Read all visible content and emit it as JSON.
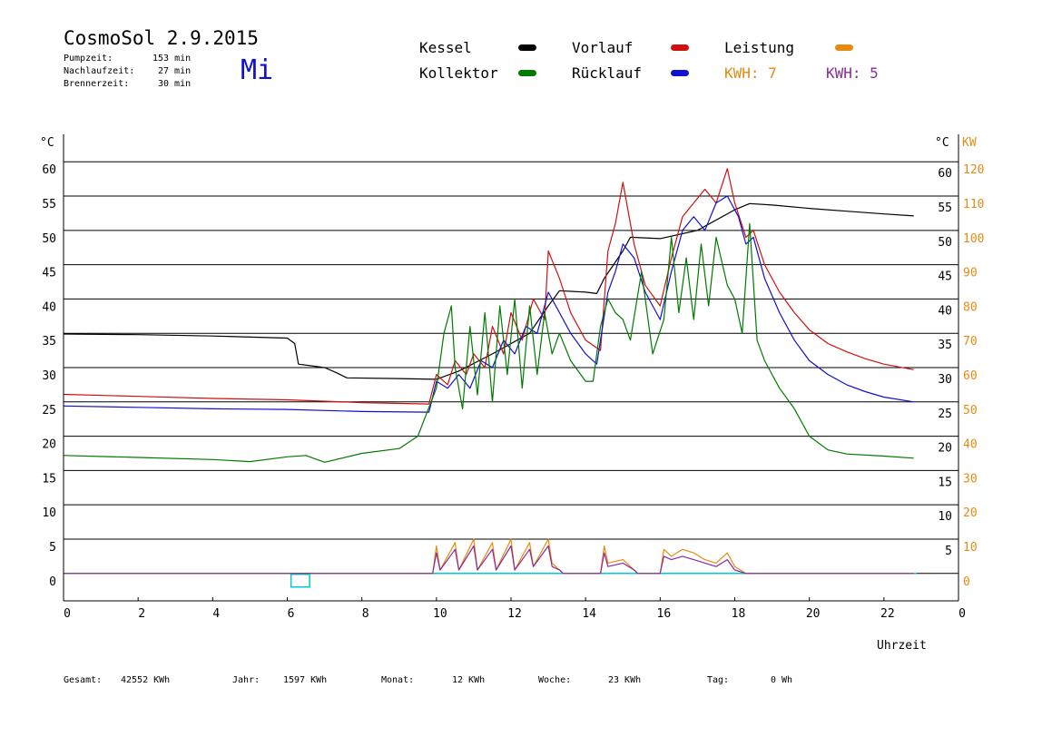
{
  "header": {
    "title": "CosmoSol 2.9.2015",
    "day": "Mi",
    "pump_label": "Pumpzeit:",
    "pump_value": "153 min",
    "nachlauf_label": "Nachlaufzeit:",
    "nachlauf_value": "27 min",
    "brenner_label": "Brennerzeit:",
    "brenner_value": "30 min"
  },
  "legend": {
    "kessel": "Kessel",
    "kollektor": "Kollektor",
    "vorlauf": "Vorlauf",
    "ruecklauf": "Rücklauf",
    "leistung": "Leistung",
    "kwh1": "KWH: 7",
    "kwh2": "KWH: 5"
  },
  "colors": {
    "kessel": "#000000",
    "kollektor": "#007a00",
    "vorlauf": "#d01010",
    "ruecklauf": "#1010d0",
    "leistung": "#e88a10",
    "kwh2": "#8a2a9a",
    "baseline": "#00c8d8"
  },
  "footer": {
    "gesamt_label": "Gesamt:",
    "gesamt_value": "42552 KWh",
    "jahr_label": "Jahr:",
    "jahr_value": "1597 KWh",
    "monat_label": "Monat:",
    "monat_value": "12 KWh",
    "woche_label": "Woche:",
    "woche_value": "23 KWh",
    "tag_label": "Tag:",
    "tag_value": "0 Wh"
  },
  "chart_data": {
    "type": "line",
    "xlabel": "Uhrzeit",
    "ylabel_left": "°C",
    "ylabel_right_temp": "°C",
    "ylabel_right_power": "KW",
    "xlim": [
      0,
      24
    ],
    "ylim": [
      -4,
      64
    ],
    "x_ticks": [
      "0",
      "2",
      "4",
      "6",
      "8",
      "10",
      "12",
      "14",
      "16",
      "18",
      "20",
      "22",
      "0"
    ],
    "y_ticks_left": [
      "0",
      "5",
      "10",
      "15",
      "20",
      "25",
      "30",
      "35",
      "40",
      "45",
      "50",
      "55",
      "60"
    ],
    "y_ticks_right_temp": [
      "5",
      "10",
      "15",
      "20",
      "25",
      "30",
      "35",
      "40",
      "45",
      "50",
      "55",
      "60"
    ],
    "y_ticks_right_power": [
      "0",
      "10",
      "20",
      "30",
      "40",
      "50",
      "60",
      "70",
      "80",
      "90",
      "100",
      "110",
      "120"
    ],
    "grid": true,
    "series": [
      {
        "name": "Kessel",
        "color": "#000000",
        "points": [
          [
            0,
            34.9
          ],
          [
            2,
            34.8
          ],
          [
            4,
            34.6
          ],
          [
            6,
            34.3
          ],
          [
            6.2,
            33.5
          ],
          [
            6.3,
            30.5
          ],
          [
            7,
            30.0
          ],
          [
            7.3,
            29.3
          ],
          [
            7.6,
            28.5
          ],
          [
            9,
            28.4
          ],
          [
            10,
            28.3
          ],
          [
            10.6,
            29.5
          ],
          [
            11.5,
            32
          ],
          [
            12.5,
            35
          ],
          [
            13,
            39
          ],
          [
            13.3,
            41.2
          ],
          [
            14,
            41.0
          ],
          [
            14.3,
            40.8
          ],
          [
            14.5,
            43
          ],
          [
            15,
            47
          ],
          [
            15.2,
            49
          ],
          [
            16,
            48.8
          ],
          [
            17,
            50
          ],
          [
            18,
            53
          ],
          [
            18.4,
            53.9
          ],
          [
            19,
            53.7
          ],
          [
            20,
            53.2
          ],
          [
            21,
            52.8
          ],
          [
            22,
            52.4
          ],
          [
            22.8,
            52.1
          ]
        ]
      },
      {
        "name": "Vorlauf",
        "color": "#d01010",
        "points": [
          [
            0,
            26.1
          ],
          [
            2,
            25.8
          ],
          [
            4,
            25.5
          ],
          [
            6,
            25.3
          ],
          [
            8,
            24.9
          ],
          [
            9.8,
            24.7
          ],
          [
            10,
            29
          ],
          [
            10.3,
            27.5
          ],
          [
            10.5,
            31
          ],
          [
            10.8,
            29
          ],
          [
            11,
            32
          ],
          [
            11.3,
            30
          ],
          [
            11.5,
            36
          ],
          [
            11.8,
            32
          ],
          [
            12,
            38
          ],
          [
            12.3,
            34
          ],
          [
            12.6,
            40
          ],
          [
            12.9,
            37
          ],
          [
            13,
            47
          ],
          [
            13.3,
            43
          ],
          [
            13.6,
            38
          ],
          [
            14,
            34
          ],
          [
            14.4,
            32.5
          ],
          [
            14.6,
            47
          ],
          [
            14.8,
            51
          ],
          [
            15,
            57
          ],
          [
            15.3,
            48
          ],
          [
            15.6,
            42
          ],
          [
            16,
            39
          ],
          [
            16.3,
            46
          ],
          [
            16.6,
            52
          ],
          [
            16.9,
            54
          ],
          [
            17.2,
            56
          ],
          [
            17.5,
            54
          ],
          [
            17.8,
            59
          ],
          [
            18,
            54
          ],
          [
            18.3,
            49
          ],
          [
            18.5,
            50
          ],
          [
            18.8,
            45
          ],
          [
            19.2,
            41
          ],
          [
            19.6,
            38
          ],
          [
            20,
            35.5
          ],
          [
            20.5,
            33.5
          ],
          [
            21,
            32.3
          ],
          [
            21.5,
            31.3
          ],
          [
            22,
            30.5
          ],
          [
            22.8,
            29.7
          ]
        ]
      },
      {
        "name": "Rücklauf",
        "color": "#1010d0",
        "points": [
          [
            0,
            24.4
          ],
          [
            2,
            24.2
          ],
          [
            4,
            24.0
          ],
          [
            6,
            23.9
          ],
          [
            8,
            23.6
          ],
          [
            9.8,
            23.5
          ],
          [
            10,
            28
          ],
          [
            10.3,
            27
          ],
          [
            10.6,
            29
          ],
          [
            10.9,
            27
          ],
          [
            11.2,
            31
          ],
          [
            11.5,
            30
          ],
          [
            11.8,
            34
          ],
          [
            12.1,
            32
          ],
          [
            12.4,
            36
          ],
          [
            12.7,
            35
          ],
          [
            13,
            41
          ],
          [
            13.3,
            38
          ],
          [
            13.6,
            35
          ],
          [
            14,
            32
          ],
          [
            14.3,
            30.5
          ],
          [
            14.6,
            41
          ],
          [
            14.8,
            44
          ],
          [
            15,
            48
          ],
          [
            15.3,
            46
          ],
          [
            15.6,
            41
          ],
          [
            16,
            37
          ],
          [
            16.3,
            44
          ],
          [
            16.6,
            50
          ],
          [
            16.9,
            52
          ],
          [
            17.2,
            50
          ],
          [
            17.5,
            54
          ],
          [
            17.8,
            55
          ],
          [
            18.1,
            52
          ],
          [
            18.3,
            48
          ],
          [
            18.5,
            49
          ],
          [
            18.8,
            43
          ],
          [
            19.2,
            38
          ],
          [
            19.6,
            34
          ],
          [
            20,
            31
          ],
          [
            20.5,
            29
          ],
          [
            21,
            27.5
          ],
          [
            21.5,
            26.5
          ],
          [
            22,
            25.7
          ],
          [
            22.8,
            25.0
          ]
        ]
      },
      {
        "name": "Kollektor",
        "color": "#007a00",
        "points": [
          [
            0,
            17.2
          ],
          [
            2,
            16.9
          ],
          [
            4,
            16.6
          ],
          [
            5,
            16.3
          ],
          [
            6,
            17.0
          ],
          [
            6.5,
            17.2
          ],
          [
            7,
            16.2
          ],
          [
            8,
            17.5
          ],
          [
            9,
            18.2
          ],
          [
            9.5,
            20
          ],
          [
            10,
            27
          ],
          [
            10.2,
            35
          ],
          [
            10.4,
            39
          ],
          [
            10.5,
            30
          ],
          [
            10.7,
            24
          ],
          [
            10.9,
            36
          ],
          [
            11.1,
            26
          ],
          [
            11.3,
            38
          ],
          [
            11.5,
            25
          ],
          [
            11.7,
            39
          ],
          [
            11.9,
            29
          ],
          [
            12.1,
            40
          ],
          [
            12.3,
            27
          ],
          [
            12.5,
            39
          ],
          [
            12.7,
            29
          ],
          [
            12.9,
            38
          ],
          [
            13.1,
            32
          ],
          [
            13.3,
            35
          ],
          [
            13.6,
            31
          ],
          [
            14,
            28
          ],
          [
            14.2,
            28
          ],
          [
            14.4,
            36
          ],
          [
            14.6,
            40
          ],
          [
            14.8,
            38
          ],
          [
            15,
            37
          ],
          [
            15.2,
            34
          ],
          [
            15.5,
            44
          ],
          [
            15.8,
            32
          ],
          [
            16.1,
            37
          ],
          [
            16.3,
            49
          ],
          [
            16.5,
            38
          ],
          [
            16.7,
            46
          ],
          [
            16.9,
            37
          ],
          [
            17.1,
            48
          ],
          [
            17.3,
            39
          ],
          [
            17.5,
            49
          ],
          [
            17.8,
            42
          ],
          [
            18,
            40
          ],
          [
            18.2,
            35
          ],
          [
            18.4,
            51
          ],
          [
            18.6,
            34
          ],
          [
            18.8,
            31
          ],
          [
            19.2,
            27
          ],
          [
            19.6,
            24
          ],
          [
            20,
            20
          ],
          [
            20.5,
            18
          ],
          [
            21,
            17.4
          ],
          [
            22,
            17.1
          ],
          [
            22.8,
            16.8
          ]
        ]
      }
    ],
    "power_series": [
      {
        "name": "Leistung",
        "color": "#e88a10",
        "points": [
          [
            0,
            0
          ],
          [
            9.9,
            0
          ],
          [
            10,
            8
          ],
          [
            10.1,
            1
          ],
          [
            10.5,
            9
          ],
          [
            10.6,
            1
          ],
          [
            11,
            10
          ],
          [
            11.1,
            1
          ],
          [
            11.5,
            9
          ],
          [
            11.6,
            1
          ],
          [
            12,
            10
          ],
          [
            12.1,
            1
          ],
          [
            12.5,
            9
          ],
          [
            12.6,
            2
          ],
          [
            13,
            10
          ],
          [
            13.1,
            3
          ],
          [
            13.3,
            1
          ],
          [
            13.4,
            0
          ],
          [
            14.4,
            0
          ],
          [
            14.5,
            8
          ],
          [
            14.6,
            3
          ],
          [
            15,
            4
          ],
          [
            15.3,
            1
          ],
          [
            15.4,
            0
          ],
          [
            16,
            0
          ],
          [
            16.1,
            7
          ],
          [
            16.3,
            5
          ],
          [
            16.6,
            7
          ],
          [
            16.9,
            6
          ],
          [
            17.2,
            4
          ],
          [
            17.5,
            3
          ],
          [
            17.8,
            6
          ],
          [
            18,
            2
          ],
          [
            18.3,
            0
          ],
          [
            22.8,
            0
          ]
        ]
      },
      {
        "name": "KWH: 5",
        "color": "#8a2a9a",
        "points": [
          [
            0,
            0
          ],
          [
            9.9,
            0
          ],
          [
            10,
            6
          ],
          [
            10.1,
            1
          ],
          [
            10.5,
            7
          ],
          [
            10.6,
            1
          ],
          [
            11,
            8
          ],
          [
            11.1,
            1
          ],
          [
            11.5,
            7
          ],
          [
            11.6,
            1
          ],
          [
            12,
            8
          ],
          [
            12.1,
            1
          ],
          [
            12.5,
            7
          ],
          [
            12.6,
            2
          ],
          [
            13,
            8
          ],
          [
            13.1,
            2
          ],
          [
            13.3,
            1
          ],
          [
            13.4,
            0
          ],
          [
            14.4,
            0
          ],
          [
            14.5,
            6
          ],
          [
            14.6,
            2
          ],
          [
            15,
            3
          ],
          [
            15.3,
            1
          ],
          [
            15.4,
            0
          ],
          [
            16,
            0
          ],
          [
            16.1,
            5
          ],
          [
            16.3,
            4
          ],
          [
            16.6,
            5
          ],
          [
            16.9,
            4
          ],
          [
            17.2,
            3
          ],
          [
            17.5,
            2
          ],
          [
            17.8,
            4
          ],
          [
            18,
            1
          ],
          [
            18.3,
            0
          ],
          [
            22.8,
            0
          ]
        ]
      }
    ]
  }
}
